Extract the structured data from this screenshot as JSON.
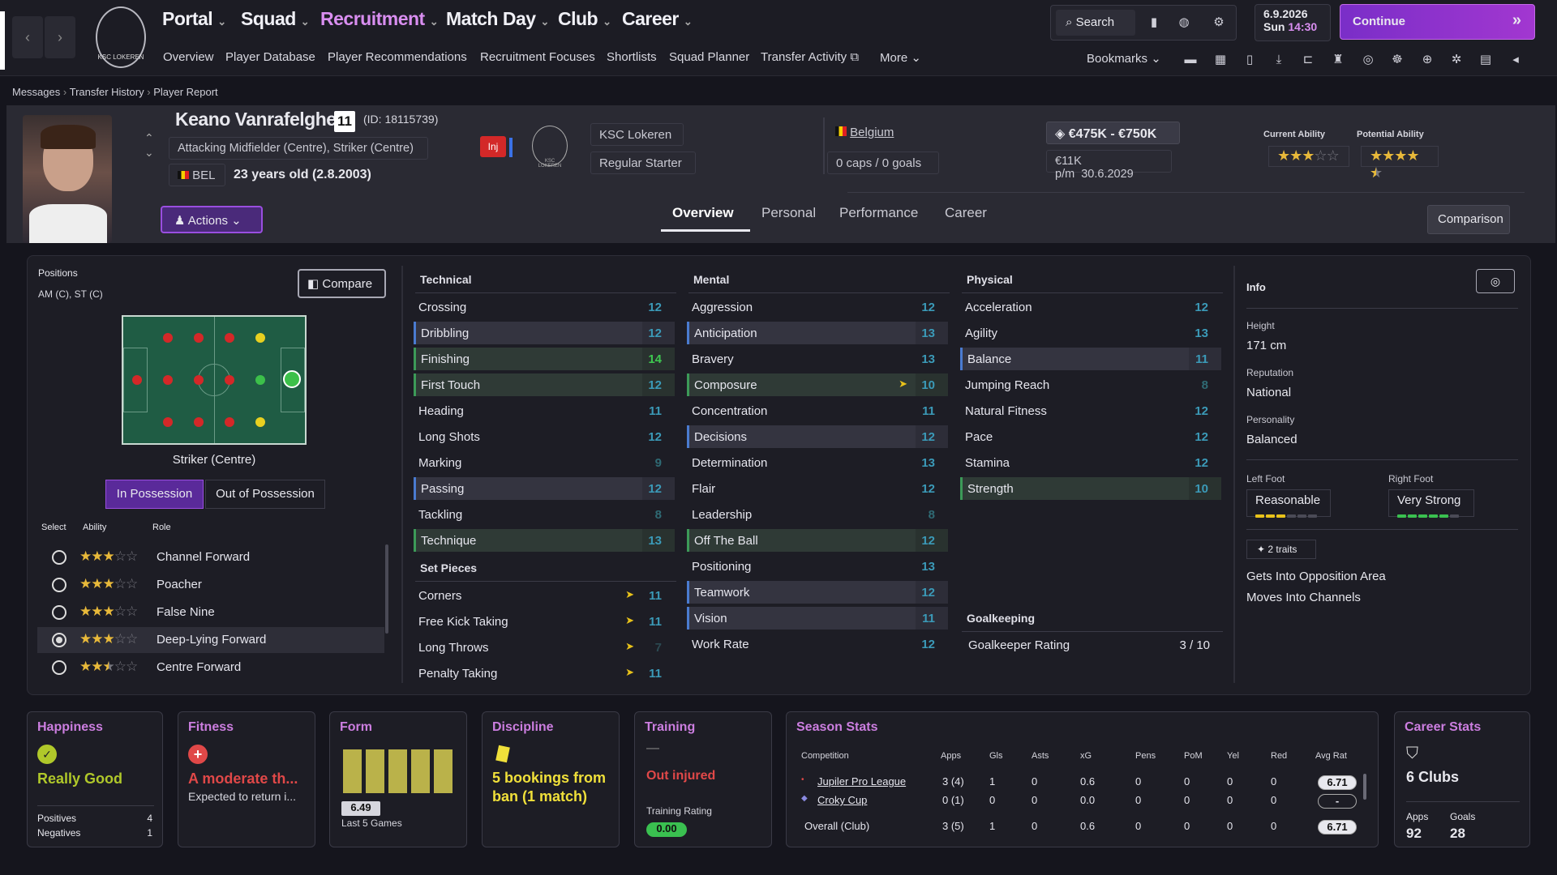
{
  "nav": {
    "main": [
      "Portal",
      "Squad",
      "Recruitment",
      "Match Day",
      "Club",
      "Career"
    ],
    "active": "Recruitment",
    "sub": [
      "Overview",
      "Player Database",
      "Player Recommendations",
      "Recruitment Focuses",
      "Shortlists",
      "Squad Planner",
      "Transfer Activity",
      "More"
    ],
    "search_label": "Search",
    "date": "6.9.2026",
    "day": "Sun",
    "time": "14:30",
    "continue_label": "Continue",
    "bookmarks_label": "Bookmarks",
    "club_logo_text": "KSC LOKEREN"
  },
  "breadcrumb": [
    "Messages",
    "Transfer History",
    "Player Report"
  ],
  "player": {
    "name": "Keano Vanrafelghem",
    "number": "11",
    "id": "(ID: 18115739)",
    "positions_long": "Attacking Midfielder (Centre), Striker (Centre)",
    "nation_code": "BEL",
    "age": "23 years old (2.8.2003)",
    "injury_badge": "Inj",
    "club": "KSC Lokeren",
    "club_logo_text": "KSC LOKEREN",
    "squad_status": "Regular Starter",
    "nation": "Belgium",
    "caps": "0 caps / 0 goals",
    "value": "€475K - €750K",
    "wage": "€11K p/m",
    "contract": "30.6.2029",
    "current_ability_label": "Current Ability",
    "potential_ability_label": "Potential Ability",
    "current_ability_stars": 3,
    "potential_ability_stars": 4.5,
    "actions_label": "Actions",
    "comparison_label": "Comparison"
  },
  "tabs": [
    "Overview",
    "Personal",
    "Performance",
    "Career"
  ],
  "active_tab": "Overview",
  "positions_panel": {
    "title": "Positions",
    "positions": "AM (C), ST (C)",
    "compare_label": "Compare",
    "selected_position": "Striker (Centre)",
    "possession_tabs": [
      "In Possession",
      "Out of Possession"
    ],
    "headers": [
      "Select",
      "Ability",
      "Role"
    ],
    "roles": [
      {
        "name": "Channel Forward",
        "stars": 3,
        "selected": false
      },
      {
        "name": "Poacher",
        "stars": 3,
        "selected": false
      },
      {
        "name": "False Nine",
        "stars": 3,
        "selected": false
      },
      {
        "name": "Deep-Lying Forward",
        "stars": 3,
        "selected": true
      },
      {
        "name": "Centre Forward",
        "stars": 2.5,
        "selected": false
      }
    ]
  },
  "attributes": {
    "technical_title": "Technical",
    "technical": [
      {
        "name": "Crossing",
        "value": 12
      },
      {
        "name": "Dribbling",
        "value": 12
      },
      {
        "name": "Finishing",
        "value": 14
      },
      {
        "name": "First Touch",
        "value": 12
      },
      {
        "name": "Heading",
        "value": 11
      },
      {
        "name": "Long Shots",
        "value": 12
      },
      {
        "name": "Marking",
        "value": 9
      },
      {
        "name": "Passing",
        "value": 12
      },
      {
        "name": "Tackling",
        "value": 8
      },
      {
        "name": "Technique",
        "value": 13
      }
    ],
    "set_pieces_title": "Set Pieces",
    "set_pieces": [
      {
        "name": "Corners",
        "value": 11
      },
      {
        "name": "Free Kick Taking",
        "value": 11
      },
      {
        "name": "Long Throws",
        "value": 7
      },
      {
        "name": "Penalty Taking",
        "value": 11
      }
    ],
    "mental_title": "Mental",
    "mental": [
      {
        "name": "Aggression",
        "value": 12
      },
      {
        "name": "Anticipation",
        "value": 13
      },
      {
        "name": "Bravery",
        "value": 13
      },
      {
        "name": "Composure",
        "value": 10
      },
      {
        "name": "Concentration",
        "value": 11
      },
      {
        "name": "Decisions",
        "value": 12
      },
      {
        "name": "Determination",
        "value": 13
      },
      {
        "name": "Flair",
        "value": 12
      },
      {
        "name": "Leadership",
        "value": 8
      },
      {
        "name": "Off The Ball",
        "value": 12
      },
      {
        "name": "Positioning",
        "value": 13
      },
      {
        "name": "Teamwork",
        "value": 12
      },
      {
        "name": "Vision",
        "value": 11
      },
      {
        "name": "Work Rate",
        "value": 12
      }
    ],
    "physical_title": "Physical",
    "physical": [
      {
        "name": "Acceleration",
        "value": 12
      },
      {
        "name": "Agility",
        "value": 13
      },
      {
        "name": "Balance",
        "value": 11
      },
      {
        "name": "Jumping Reach",
        "value": 8
      },
      {
        "name": "Natural Fitness",
        "value": 12
      },
      {
        "name": "Pace",
        "value": 12
      },
      {
        "name": "Stamina",
        "value": 12
      },
      {
        "name": "Strength",
        "value": 10
      }
    ],
    "goalkeeping_title": "Goalkeeping",
    "gk_label": "Goalkeeper Rating",
    "gk_value": "3 / 10"
  },
  "info": {
    "title": "Info",
    "height_label": "Height",
    "height": "171 cm",
    "reputation_label": "Reputation",
    "reputation": "National",
    "personality_label": "Personality",
    "personality": "Balanced",
    "left_foot_label": "Left Foot",
    "left_foot": "Reasonable",
    "left_foot_level": 3,
    "right_foot_label": "Right Foot",
    "right_foot": "Very Strong",
    "right_foot_level": 5,
    "traits_label": "2 traits",
    "traits": [
      "Gets Into Opposition Area",
      "Moves Into Channels"
    ]
  },
  "cards": {
    "happiness": {
      "title": "Happiness",
      "status": "Really Good",
      "positives_label": "Positives",
      "positives": "4",
      "negatives_label": "Negatives",
      "negatives": "1"
    },
    "fitness": {
      "title": "Fitness",
      "status": "A moderate th...",
      "sub": "Expected to return i..."
    },
    "form": {
      "title": "Form",
      "rating": "6.49",
      "sub": "Last 5 Games"
    },
    "discipline": {
      "title": "Discipline",
      "status": "5 bookings from ban (1 match)"
    },
    "training": {
      "title": "Training",
      "dash": "—",
      "status": "Out injured",
      "rating_label": "Training Rating",
      "rating": "0.00"
    },
    "season": {
      "title": "Season Stats",
      "headers": [
        "Competition",
        "Apps",
        "Gls",
        "Asts",
        "xG",
        "Pens",
        "PoM",
        "Yel",
        "Red",
        "Avg Rat"
      ],
      "rows": [
        [
          "Jupiler Pro League",
          "3 (4)",
          "1",
          "0",
          "0.6",
          "0",
          "0",
          "0",
          "0",
          "6.71"
        ],
        [
          "Croky Cup",
          "0 (1)",
          "0",
          "0",
          "0.0",
          "0",
          "0",
          "0",
          "0",
          "-"
        ],
        [
          "Overall (Club)",
          "3 (5)",
          "1",
          "0",
          "0.6",
          "0",
          "0",
          "0",
          "0",
          "6.71"
        ]
      ]
    },
    "career": {
      "title": "Career Stats",
      "clubs": "6 Clubs",
      "apps_label": "Apps",
      "apps": "92",
      "goals_label": "Goals",
      "goals": "28"
    }
  }
}
